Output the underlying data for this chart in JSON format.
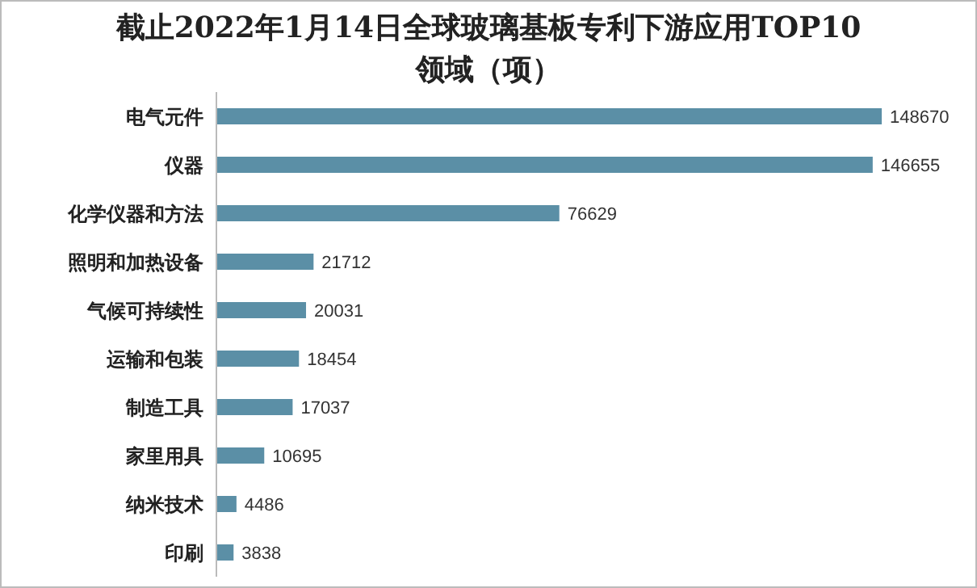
{
  "chart_data": {
    "type": "bar",
    "orientation": "horizontal",
    "title": "截止2022年1月14日全球玻璃基板专利下游应用TOP10领域（项）",
    "categories": [
      "电气元件",
      "仪器",
      "化学仪器和方法",
      "照明和加热设备",
      "气候可持续性",
      "运输和包装",
      "制造工具",
      "家里用具",
      "纳米技术",
      "印刷"
    ],
    "values": [
      148670,
      146655,
      76629,
      21712,
      20031,
      18454,
      17037,
      10695,
      4486,
      3838
    ],
    "color": "#5b8fa6",
    "data_labels": true
  }
}
